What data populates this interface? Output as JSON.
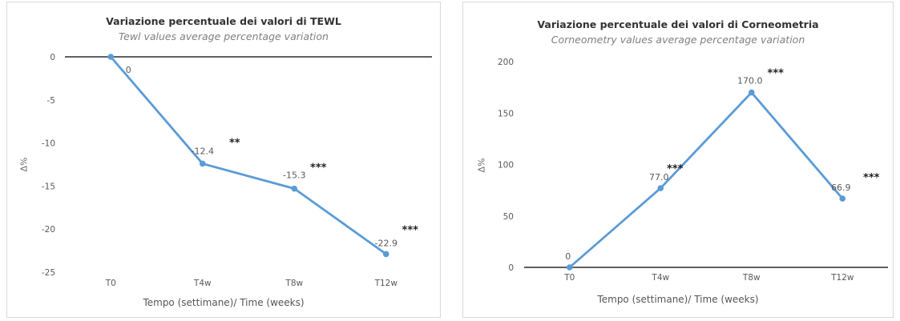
{
  "colors": {
    "series": "#5b9bd5",
    "axis": "#000000",
    "text": "#595959",
    "border": "#d9d9d9"
  },
  "chart_data": [
    {
      "type": "line",
      "title": "Variazione percentuale dei valori di TEWL",
      "subtitle": "Tewl values average percentage variation",
      "xlabel": "Tempo (settimane)/ Time (weeks)",
      "ylabel": "Δ%",
      "categories": [
        "T0",
        "T4w",
        "T8w",
        "T12w"
      ],
      "yticks": [
        "0",
        "-5",
        "-10",
        "-15",
        "-20",
        "-25"
      ],
      "ylim": [
        -25,
        0
      ],
      "grid": false,
      "series": [
        {
          "values": [
            0,
            -12.4,
            -15.3,
            -22.9
          ],
          "data_labels": [
            "0",
            "-12.4",
            "-15.3",
            "-22.9"
          ],
          "significance": [
            "",
            "**",
            "***",
            "***"
          ]
        }
      ]
    },
    {
      "type": "line",
      "title": "Variazione percentuale dei valori di Corneometria",
      "subtitle": "Corneometry values average percentage variation",
      "xlabel": "Tempo (settimane)/ Time (weeks)",
      "ylabel": "Δ%",
      "categories": [
        "T0",
        "T4w",
        "T8w",
        "T12w"
      ],
      "yticks": [
        "0",
        "50",
        "100",
        "150",
        "200"
      ],
      "ylim": [
        0,
        200
      ],
      "grid": false,
      "series": [
        {
          "values": [
            0,
            77.0,
            170.0,
            66.9
          ],
          "data_labels": [
            "0",
            "77.0",
            "170.0",
            "66.9"
          ],
          "significance": [
            "",
            "***",
            "***",
            "***"
          ]
        }
      ]
    }
  ]
}
